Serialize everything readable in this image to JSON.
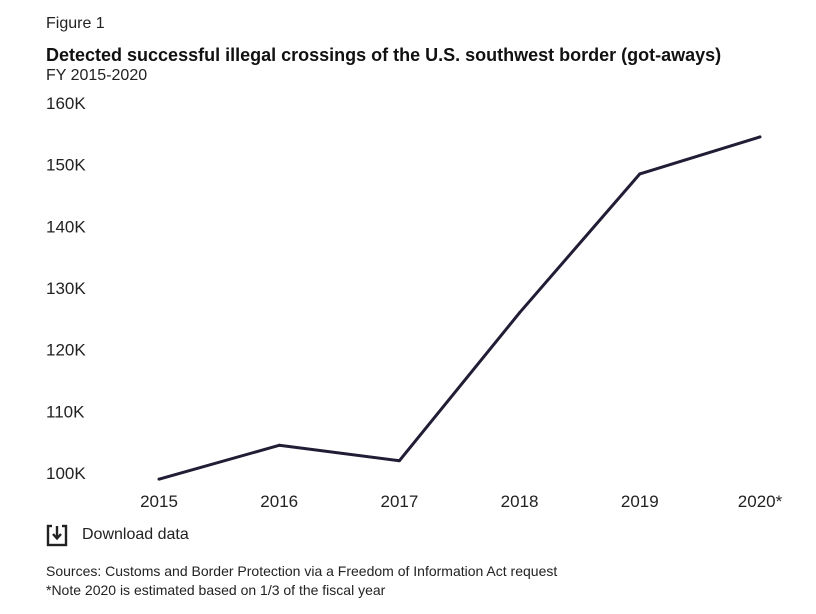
{
  "figure_label": "Figure 1",
  "download_label": "Download data",
  "sources": "Sources: Customs and Border Protection via a Freedom of Information Act request",
  "note": "*Note 2020 is estimated based on 1/3 of the fiscal year",
  "colors": {
    "line": "#221c35",
    "text": "#222222"
  },
  "icons": {
    "download": "download-icon"
  },
  "chart_data": {
    "type": "line",
    "title": "Detected successful illegal crossings of the U.S. southwest border (got-aways)",
    "subtitle": "FY 2015-2020",
    "categories": [
      "2015",
      "2016",
      "2017",
      "2018",
      "2019",
      "2020*"
    ],
    "values": [
      99000,
      104500,
      102000,
      126000,
      148500,
      154500
    ],
    "ylim": [
      100000,
      160000
    ],
    "yticks": [
      100000,
      110000,
      120000,
      130000,
      140000,
      150000,
      160000
    ],
    "ytick_labels": [
      "100K",
      "110K",
      "120K",
      "130K",
      "140K",
      "150K",
      "160K"
    ],
    "grid": false,
    "legend": "none"
  }
}
